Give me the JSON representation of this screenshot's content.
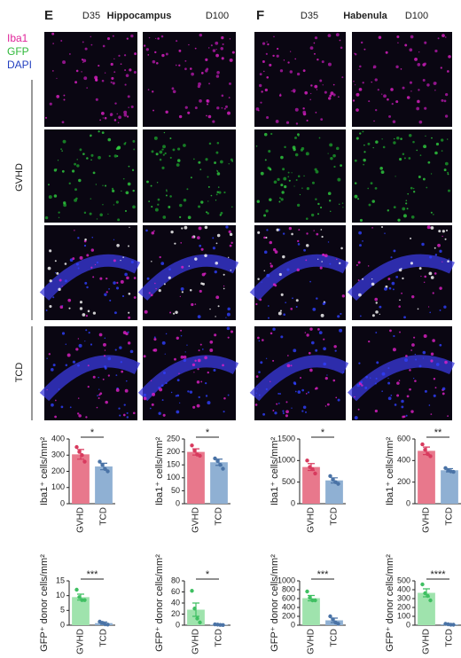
{
  "panels": [
    {
      "letter": "E",
      "title": "Hippocampus",
      "timepoints": [
        "D35",
        "D100"
      ]
    },
    {
      "letter": "F",
      "title": "Habenula",
      "timepoints": [
        "D35",
        "D100"
      ]
    }
  ],
  "stains": [
    "Iba1",
    "GFP",
    "DAPI"
  ],
  "groups": [
    "GVHD",
    "TCD"
  ],
  "chart_data": [
    {
      "type": "bar",
      "ylabel": "Iba1⁺ cells/mm²",
      "categories": [
        "GVHD",
        "TCD"
      ],
      "values": [
        305,
        230
      ],
      "errors": [
        30,
        20
      ],
      "points": [
        [
          350,
          320,
          300,
          260
        ],
        [
          260,
          240,
          215,
          200
        ]
      ],
      "colors": [
        "#e8788c",
        "#8fb0d3"
      ],
      "point_colors": [
        "#d83a5e",
        "#4a73a6"
      ],
      "ylim": [
        0,
        400
      ],
      "yticks": [
        0,
        100,
        200,
        300,
        400
      ],
      "significance": "*"
    },
    {
      "type": "bar",
      "ylabel": "Iba1⁺ cells/mm²",
      "categories": [
        "GVHD",
        "TCD"
      ],
      "values": [
        200,
        160
      ],
      "errors": [
        12,
        12
      ],
      "points": [
        [
          225,
          205,
          190,
          185
        ],
        [
          175,
          165,
          150,
          135
        ]
      ],
      "colors": [
        "#e8788c",
        "#8fb0d3"
      ],
      "point_colors": [
        "#d83a5e",
        "#4a73a6"
      ],
      "ylim": [
        0,
        250
      ],
      "yticks": [
        0,
        50,
        100,
        150,
        200,
        250
      ],
      "significance": "*"
    },
    {
      "type": "bar",
      "ylabel": "Iba1⁺ cells/mm²",
      "categories": [
        "GVHD",
        "TCD"
      ],
      "values": [
        850,
        540
      ],
      "errors": [
        80,
        60
      ],
      "points": [
        [
          1000,
          850,
          800,
          700
        ],
        [
          640,
          560,
          500,
          460
        ]
      ],
      "colors": [
        "#e8788c",
        "#8fb0d3"
      ],
      "point_colors": [
        "#d83a5e",
        "#4a73a6"
      ],
      "ylim": [
        0,
        1500
      ],
      "yticks": [
        0,
        500,
        1000,
        1500
      ],
      "significance": "*"
    },
    {
      "type": "bar",
      "ylabel": "Iba1⁺ cells/mm²",
      "categories": [
        "GVHD",
        "TCD"
      ],
      "values": [
        490,
        310
      ],
      "errors": [
        35,
        15
      ],
      "points": [
        [
          550,
          500,
          460,
          440
        ],
        [
          330,
          310,
          300,
          295
        ]
      ],
      "colors": [
        "#e8788c",
        "#8fb0d3"
      ],
      "point_colors": [
        "#d83a5e",
        "#4a73a6"
      ],
      "ylim": [
        0,
        600
      ],
      "yticks": [
        0,
        200,
        400,
        600
      ],
      "significance": "**"
    },
    {
      "type": "bar",
      "ylabel": "GFP⁺ donor cells/mm²",
      "categories": [
        "GVHD",
        "TCD"
      ],
      "values": [
        9.5,
        0.7
      ],
      "errors": [
        1,
        0.4
      ],
      "points": [
        [
          12,
          9.5,
          8.5,
          8.5
        ],
        [
          1.2,
          0.8,
          0.3,
          0.2
        ]
      ],
      "colors": [
        "#9fe3ad",
        "#8fb0d3"
      ],
      "point_colors": [
        "#3fbf62",
        "#4a73a6"
      ],
      "ylim": [
        0,
        15
      ],
      "yticks": [
        0,
        5,
        10,
        15
      ],
      "significance": "***"
    },
    {
      "type": "bar",
      "ylabel": "GFP⁺ donor cells/mm²",
      "categories": [
        "GVHD",
        "TCD"
      ],
      "values": [
        28,
        1
      ],
      "errors": [
        12,
        0.5
      ],
      "points": [
        [
          62,
          30,
          12,
          5
        ],
        [
          1.5,
          1,
          0.5,
          0.3
        ]
      ],
      "colors": [
        "#9fe3ad",
        "#8fb0d3"
      ],
      "point_colors": [
        "#3fbf62",
        "#4a73a6"
      ],
      "ylim": [
        0,
        80
      ],
      "yticks": [
        0,
        20,
        40,
        60,
        80
      ],
      "significance": "*"
    },
    {
      "type": "bar",
      "ylabel": "GFP⁺ donor cells/mm²",
      "categories": [
        "GVHD",
        "TCD"
      ],
      "values": [
        610,
        110
      ],
      "errors": [
        60,
        50
      ],
      "points": [
        [
          760,
          620,
          560,
          560
        ],
        [
          200,
          130,
          60,
          30
        ]
      ],
      "colors": [
        "#9fe3ad",
        "#8fb0d3"
      ],
      "point_colors": [
        "#3fbf62",
        "#4a73a6"
      ],
      "ylim": [
        0,
        1000
      ],
      "yticks": [
        0,
        200,
        400,
        600,
        800,
        1000
      ],
      "significance": "***"
    },
    {
      "type": "bar",
      "ylabel": "GFP⁺ donor cells/mm²",
      "categories": [
        "GVHD",
        "TCD"
      ],
      "values": [
        365,
        10
      ],
      "errors": [
        45,
        3
      ],
      "points": [
        [
          460,
          360,
          330,
          280
        ],
        [
          15,
          10,
          6,
          5
        ]
      ],
      "colors": [
        "#9fe3ad",
        "#8fb0d3"
      ],
      "point_colors": [
        "#3fbf62",
        "#4a73a6"
      ],
      "ylim": [
        0,
        500
      ],
      "yticks": [
        0,
        100,
        200,
        300,
        400,
        500
      ],
      "significance": "****"
    }
  ]
}
